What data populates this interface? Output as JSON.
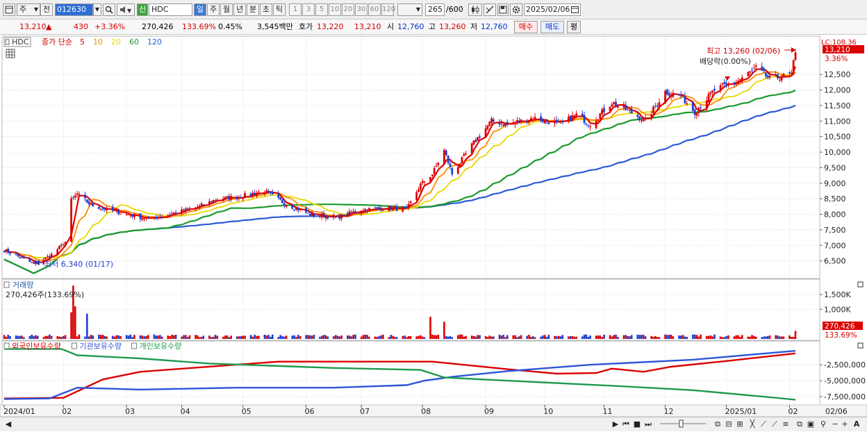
{
  "toolbar": {
    "type_select": "주",
    "prev_button": "전",
    "code": "012630",
    "new_badge": "신",
    "name": "HDC",
    "period_tabs": [
      "일",
      "주",
      "월",
      "년",
      "분",
      "초",
      "틱"
    ],
    "active_period": "일",
    "minute_options": [
      "1",
      "3",
      "5",
      "10",
      "20",
      "30",
      "60",
      "120"
    ],
    "count": "265",
    "count_max": "/600",
    "date": "2025/02/06"
  },
  "quote": {
    "price": "13,210",
    "change_arrow": "▲",
    "change": "430",
    "change_pct": "+3.36%",
    "volume": "270,426",
    "volume_ratio": "133.69%",
    "turnover": "0.45%",
    "amount": "3,545백만",
    "hoga_label": "호가",
    "hoga_ask": "13,220",
    "hoga_bid": "13,210",
    "open_label": "시",
    "open": "12,760",
    "high_label": "고",
    "high": "13,260",
    "low_label": "저",
    "low": "12,760",
    "buy_button": "매수",
    "sell_button": "매도",
    "eval_button": "평"
  },
  "icons": {
    "layout": "layout-icon",
    "search": "search-icon",
    "sound": "speaker-icon",
    "candles": "candle-icon",
    "tools": "draw-tool-icon",
    "save": "save-icon",
    "settings": "gear-icon",
    "calendar": "calendar-icon"
  },
  "legend": {
    "symbol": "HDC",
    "ma_title": "종가 단순",
    "ma_periods": [
      "5",
      "10",
      "20",
      "60",
      "120"
    ],
    "ma_colors": [
      "#e00000",
      "#ff8c00",
      "#e8d800",
      "#1a9a2a",
      "#2a5ad8"
    ]
  },
  "volume_panel": {
    "title": "거래량",
    "value": "270,426주(133.69%)"
  },
  "holding_panel": {
    "items": [
      {
        "label": "외국인보유수량",
        "color": "#dd0000"
      },
      {
        "label": "기관보유수량",
        "color": "#2d55d8"
      },
      {
        "label": "개인보유수량",
        "color": "#1e9a50"
      }
    ]
  },
  "colors": {
    "up": "#dd0000",
    "down": "#1f3fcf",
    "grid": "#d8d8d8"
  },
  "chart_data": {
    "type": "candlestick",
    "ylim": [
      6000,
      13600
    ],
    "y_ticks": [
      6500,
      7000,
      7500,
      8000,
      8500,
      9000,
      9500,
      10000,
      10500,
      11000,
      11500,
      12000,
      12500
    ],
    "y_tick_labels": [
      "6,500",
      "7,000",
      "7,500",
      "8,000",
      "8,500",
      "9,000",
      "9,500",
      "10,000",
      "10,500",
      "11,000",
      "11,500",
      "12,000",
      "12,500"
    ],
    "x_month_labels": [
      "2024/01",
      "02",
      "03",
      "04",
      "05",
      "06",
      "07",
      "08",
      "09",
      "10",
      "11",
      "12",
      "2025/01",
      "02",
      "02/06"
    ],
    "price_anchors": [
      [
        "2024-01-02",
        6850
      ],
      [
        "2024-01-17",
        6400
      ],
      [
        "2024-01-25",
        6650
      ],
      [
        "2024-02-02",
        7100
      ],
      [
        "2024-02-05",
        8450
      ],
      [
        "2024-02-08",
        8650
      ],
      [
        "2024-02-15",
        8300
      ],
      [
        "2024-02-23",
        8150
      ],
      [
        "2024-03-08",
        7950
      ],
      [
        "2024-03-15",
        7850
      ],
      [
        "2024-03-29",
        8050
      ],
      [
        "2024-04-10",
        8250
      ],
      [
        "2024-04-19",
        8500
      ],
      [
        "2024-04-29",
        8550
      ],
      [
        "2024-05-13",
        8750
      ],
      [
        "2024-05-23",
        8350
      ],
      [
        "2024-06-05",
        8000
      ],
      [
        "2024-06-19",
        7900
      ],
      [
        "2024-07-01",
        8150
      ],
      [
        "2024-07-15",
        8200
      ],
      [
        "2024-07-24",
        8150
      ],
      [
        "2024-07-31",
        8950
      ],
      [
        "2024-08-06",
        9300
      ],
      [
        "2024-08-12",
        10050
      ],
      [
        "2024-08-16",
        9300
      ],
      [
        "2024-08-27",
        10300
      ],
      [
        "2024-09-05",
        11000
      ],
      [
        "2024-09-13",
        10900
      ],
      [
        "2024-09-26",
        11100
      ],
      [
        "2024-10-10",
        10900
      ],
      [
        "2024-10-18",
        11200
      ],
      [
        "2024-10-25",
        10900
      ],
      [
        "2024-11-05",
        11600
      ],
      [
        "2024-11-14",
        11300
      ],
      [
        "2024-11-22",
        11000
      ],
      [
        "2024-12-02",
        11950
      ],
      [
        "2024-12-10",
        11800
      ],
      [
        "2024-12-17",
        11300
      ],
      [
        "2024-12-27",
        12000
      ],
      [
        "2025-01-08",
        12300
      ],
      [
        "2025-01-17",
        12700
      ],
      [
        "2025-01-24",
        12350
      ],
      [
        "2025-02-04",
        12500
      ],
      [
        "2025-02-06",
        13210
      ]
    ],
    "annotations": {
      "low": "최저 6,340 (01/17)",
      "high": "최고 13,260 (02/06)",
      "dividend": "배당락(0.00%)",
      "last_price": "13,210",
      "last_pct": "3.36%",
      "lc": "LC:108.36"
    },
    "volume": {
      "ylim": [
        0,
        1900000
      ],
      "y_ticks": [
        1000000,
        1500000
      ],
      "y_tick_labels": [
        "1,000K",
        "1,500K"
      ],
      "last": "270,426",
      "last_pct": "133.69%",
      "spikes": [
        [
          "2024-02-05",
          900000
        ],
        [
          "2024-02-06",
          1800000
        ],
        [
          "2024-02-07",
          1100000
        ],
        [
          "2024-02-13",
          850000
        ],
        [
          "2024-08-05",
          750000
        ],
        [
          "2024-08-12",
          580000
        ]
      ]
    },
    "holdings": {
      "ylim": [
        -8600000,
        700000
      ],
      "y_ticks": [
        -2500000,
        -5000000,
        -7500000
      ],
      "y_tick_labels": [
        "-2,500,000",
        "-5,000,000",
        "-7,500,000"
      ],
      "series": [
        {
          "name": "외국인보유수량",
          "points": [
            [
              "2024-01-02",
              -7800000
            ],
            [
              "2024-02-01",
              -7700000
            ],
            [
              "2024-02-21",
              -4800000
            ],
            [
              "2024-03-11",
              -3600000
            ],
            [
              "2024-04-10",
              -2900000
            ],
            [
              "2024-05-20",
              -2000000
            ],
            [
              "2024-07-15",
              -2000000
            ],
            [
              "2024-08-06",
              -2000000
            ],
            [
              "2024-09-13",
              -3200000
            ],
            [
              "2024-10-08",
              -3900000
            ],
            [
              "2024-10-28",
              -3800000
            ],
            [
              "2024-11-05",
              -3100000
            ],
            [
              "2024-11-21",
              -3600000
            ],
            [
              "2024-12-05",
              -2800000
            ],
            [
              "2025-01-02",
              -1900000
            ],
            [
              "2025-02-06",
              -700000
            ]
          ]
        },
        {
          "name": "기관보유수량",
          "points": [
            [
              "2024-01-02",
              -7900000
            ],
            [
              "2024-01-25",
              -7800000
            ],
            [
              "2024-02-08",
              -6100000
            ],
            [
              "2024-03-11",
              -6400000
            ],
            [
              "2024-04-29",
              -6100000
            ],
            [
              "2024-06-17",
              -6100000
            ],
            [
              "2024-07-24",
              -5700000
            ],
            [
              "2024-08-02",
              -5000000
            ],
            [
              "2024-08-16",
              -4400000
            ],
            [
              "2024-09-13",
              -3500000
            ],
            [
              "2024-10-25",
              -2500000
            ],
            [
              "2024-12-16",
              -1700000
            ],
            [
              "2025-02-06",
              -300000
            ]
          ]
        },
        {
          "name": "개인보유수량",
          "points": [
            [
              "2024-01-02",
              0
            ],
            [
              "2024-01-31",
              0
            ],
            [
              "2024-02-08",
              -1000000
            ],
            [
              "2024-03-11",
              -1500000
            ],
            [
              "2024-04-15",
              -2300000
            ],
            [
              "2024-06-17",
              -3000000
            ],
            [
              "2024-07-31",
              -3300000
            ],
            [
              "2024-08-12",
              -4500000
            ],
            [
              "2024-09-13",
              -5000000
            ],
            [
              "2024-11-05",
              -5800000
            ],
            [
              "2024-12-16",
              -6500000
            ],
            [
              "2025-01-24",
              -7600000
            ],
            [
              "2025-02-06",
              -8000000
            ]
          ]
        }
      ]
    }
  },
  "bottom": {
    "end_label": "02/06"
  }
}
